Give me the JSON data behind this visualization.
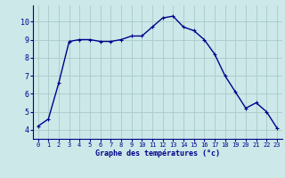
{
  "x": [
    0,
    1,
    2,
    3,
    4,
    5,
    6,
    7,
    8,
    9,
    10,
    11,
    12,
    13,
    14,
    15,
    16,
    17,
    18,
    19,
    20,
    21,
    22,
    23
  ],
  "y": [
    4.2,
    4.6,
    6.6,
    8.9,
    9.0,
    9.0,
    8.9,
    8.9,
    9.0,
    9.2,
    9.2,
    9.7,
    10.2,
    10.3,
    9.7,
    9.5,
    9.0,
    8.2,
    7.0,
    6.1,
    5.2,
    5.5,
    5.0,
    4.1
  ],
  "line_color": "#00008b",
  "marker": "+",
  "marker_color": "#00008b",
  "bg_color": "#cce8e8",
  "grid_color": "#aacaca",
  "xlabel": "Graphe des températures (°c)",
  "xlabel_color": "#00008b",
  "ylim": [
    3.5,
    10.9
  ],
  "xlim": [
    -0.5,
    23.5
  ],
  "yticks": [
    4,
    5,
    6,
    7,
    8,
    9,
    10
  ],
  "xtick_labels": [
    "0",
    "1",
    "2",
    "3",
    "4",
    "5",
    "6",
    "7",
    "8",
    "9",
    "10",
    "11",
    "12",
    "13",
    "14",
    "15",
    "16",
    "17",
    "18",
    "19",
    "20",
    "21",
    "22",
    "23"
  ],
  "tick_color": "#00008b",
  "line_width": 1.0,
  "marker_size": 3.5
}
